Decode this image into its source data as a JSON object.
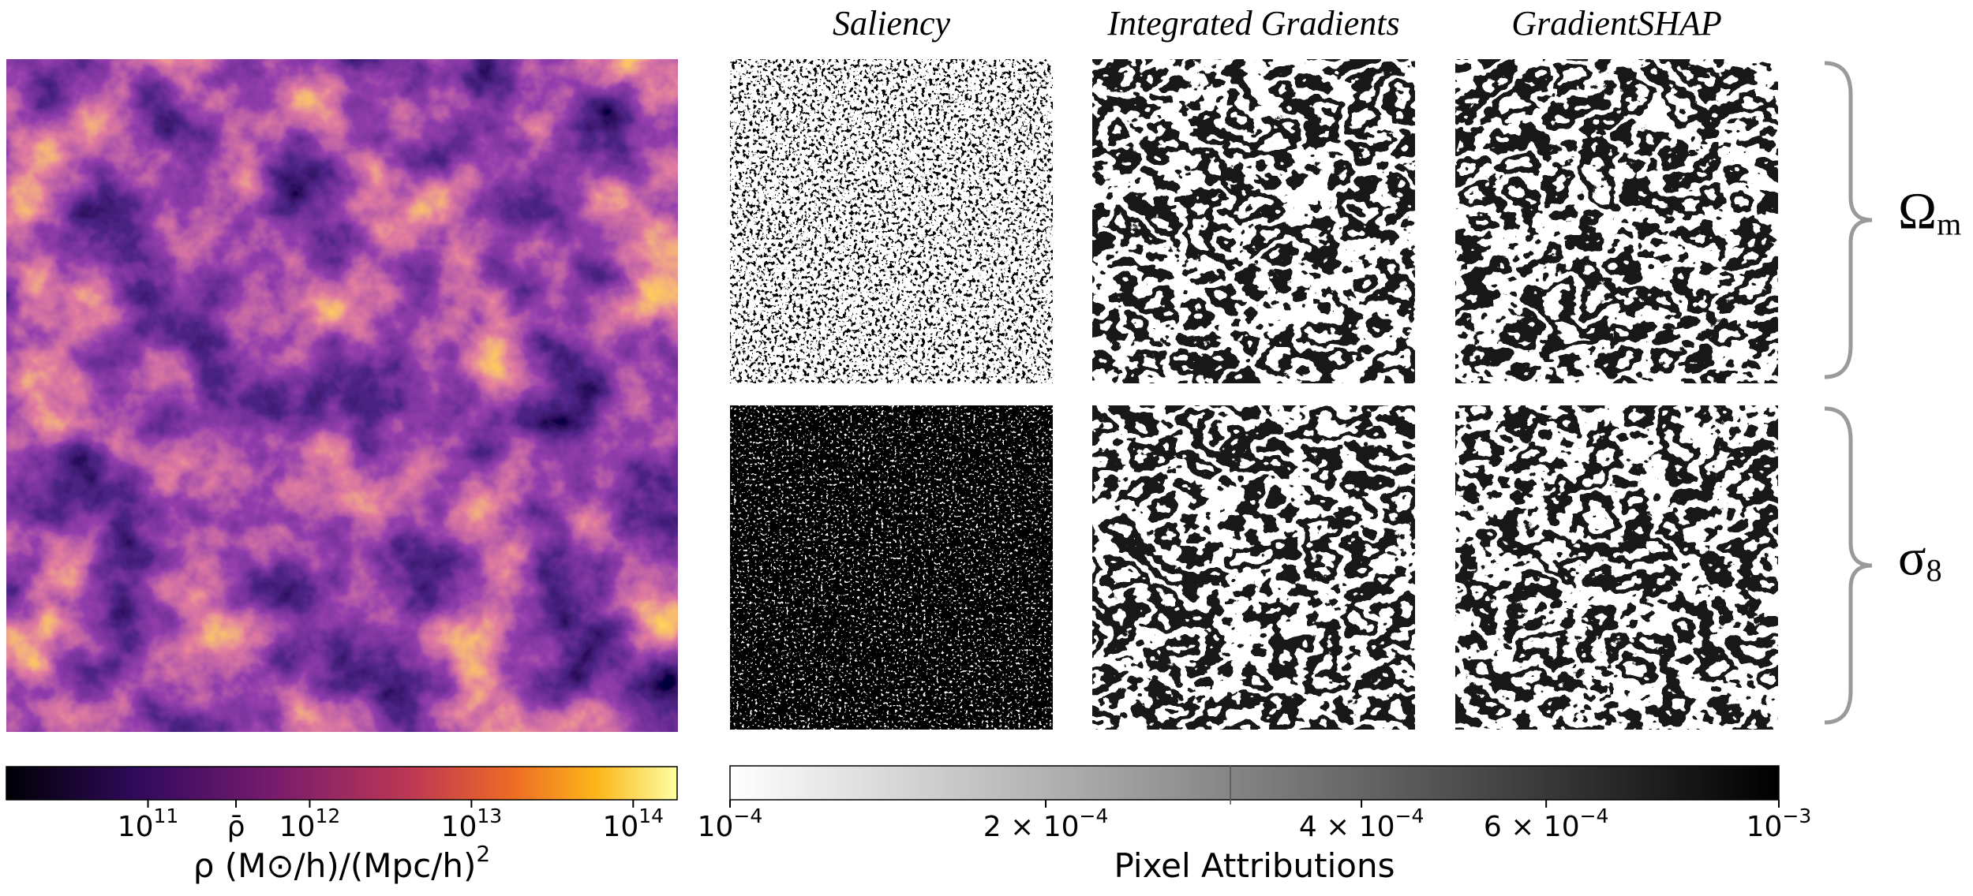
{
  "figure": {
    "columns": [
      "Saliency",
      "Integrated Gradients",
      "GradientSHAP"
    ],
    "rows": [
      {
        "symbol": "Ω",
        "subscript": "m"
      },
      {
        "symbol": "σ",
        "subscript": "8"
      }
    ],
    "density_colorbar": {
      "scale": "log",
      "colormap": "inferno",
      "lim": [
        13300000000,
        187000000000000
      ],
      "ticks": [
        {
          "value": 100000000000,
          "base": "10",
          "exp": "11"
        },
        {
          "value": 350000000000,
          "label": "ρ̄"
        },
        {
          "value": 1000000000000,
          "base": "10",
          "exp": "12"
        },
        {
          "value": 10000000000000,
          "base": "10",
          "exp": "13"
        },
        {
          "value": 100000000000000,
          "base": "10",
          "exp": "14"
        }
      ],
      "label": "ρ (M⊙/h)/(Mpc/h)",
      "label_exp": "2"
    },
    "attribution_colorbar": {
      "scale": "log",
      "colormap": "gray_r",
      "lim": [
        0.0001,
        0.001
      ],
      "ticks": [
        {
          "value": 0.0001,
          "base": "10",
          "exp": "−4"
        },
        {
          "value": 0.0002,
          "base": "2 × 10",
          "exp": "−4"
        },
        {
          "value": 0.0004,
          "base": "4 × 10",
          "exp": "−4"
        },
        {
          "value": 0.0006,
          "base": "6 × 10",
          "exp": "−4"
        },
        {
          "value": 0.001,
          "base": "10",
          "exp": "−3"
        }
      ],
      "minor_ticks": [
        0.0003
      ],
      "label": "Pixel Attributions"
    }
  }
}
